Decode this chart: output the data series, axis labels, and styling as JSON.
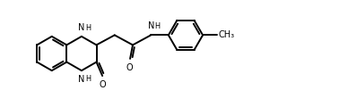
{
  "bg_color": "#ffffff",
  "line_color": "#000000",
  "lw": 1.4,
  "fs": 7.0,
  "figsize": [
    3.88,
    1.2
  ],
  "dpi": 100,
  "xlim": [
    0,
    10.5
  ],
  "ylim": [
    0.0,
    3.2
  ]
}
